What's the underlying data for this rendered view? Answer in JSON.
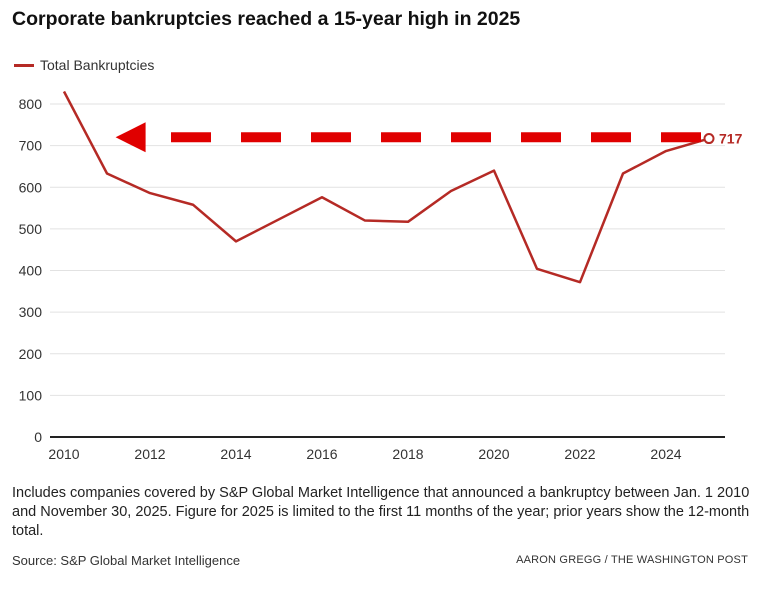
{
  "chart_data": {
    "type": "line",
    "title": "Corporate bankruptcies reached a 15-year high in 2025",
    "xlabel": "",
    "ylabel": "",
    "x": [
      2010,
      2011,
      2012,
      2013,
      2014,
      2015,
      2016,
      2017,
      2018,
      2019,
      2020,
      2021,
      2022,
      2023,
      2024,
      2025
    ],
    "series": [
      {
        "name": "Total Bankruptcies",
        "values": [
          830,
          633,
          586,
          558,
          470,
          523,
          576,
          520,
          517,
          591,
          640,
          404,
          372,
          633,
          687,
          717
        ],
        "color": "#b52a25"
      }
    ],
    "xticks": [
      2010,
      2012,
      2014,
      2016,
      2018,
      2020,
      2022,
      2024
    ],
    "yticks": [
      0,
      100,
      200,
      300,
      400,
      500,
      600,
      700,
      800
    ],
    "xlim": [
      2010,
      2025
    ],
    "ylim": [
      0,
      800
    ],
    "grid": true,
    "legend": "top-left",
    "annotation": {
      "label": "717",
      "year": 2025,
      "value": 717
    },
    "arrow": {
      "value": 720,
      "from_year": 2025,
      "to_year": 2011.2,
      "color": "#e00000"
    }
  },
  "note": "Includes companies covered by S&P Global Market Intelligence that announced a bankruptcy between Jan. 1 2010 and November 30, 2025. Figure for 2025 is limited to the first 11 months of the year; prior years show the 12-month total.",
  "source": "Source: S&P Global Market Intelligence",
  "credit": "AARON GREGG / THE WASHINGTON POST"
}
